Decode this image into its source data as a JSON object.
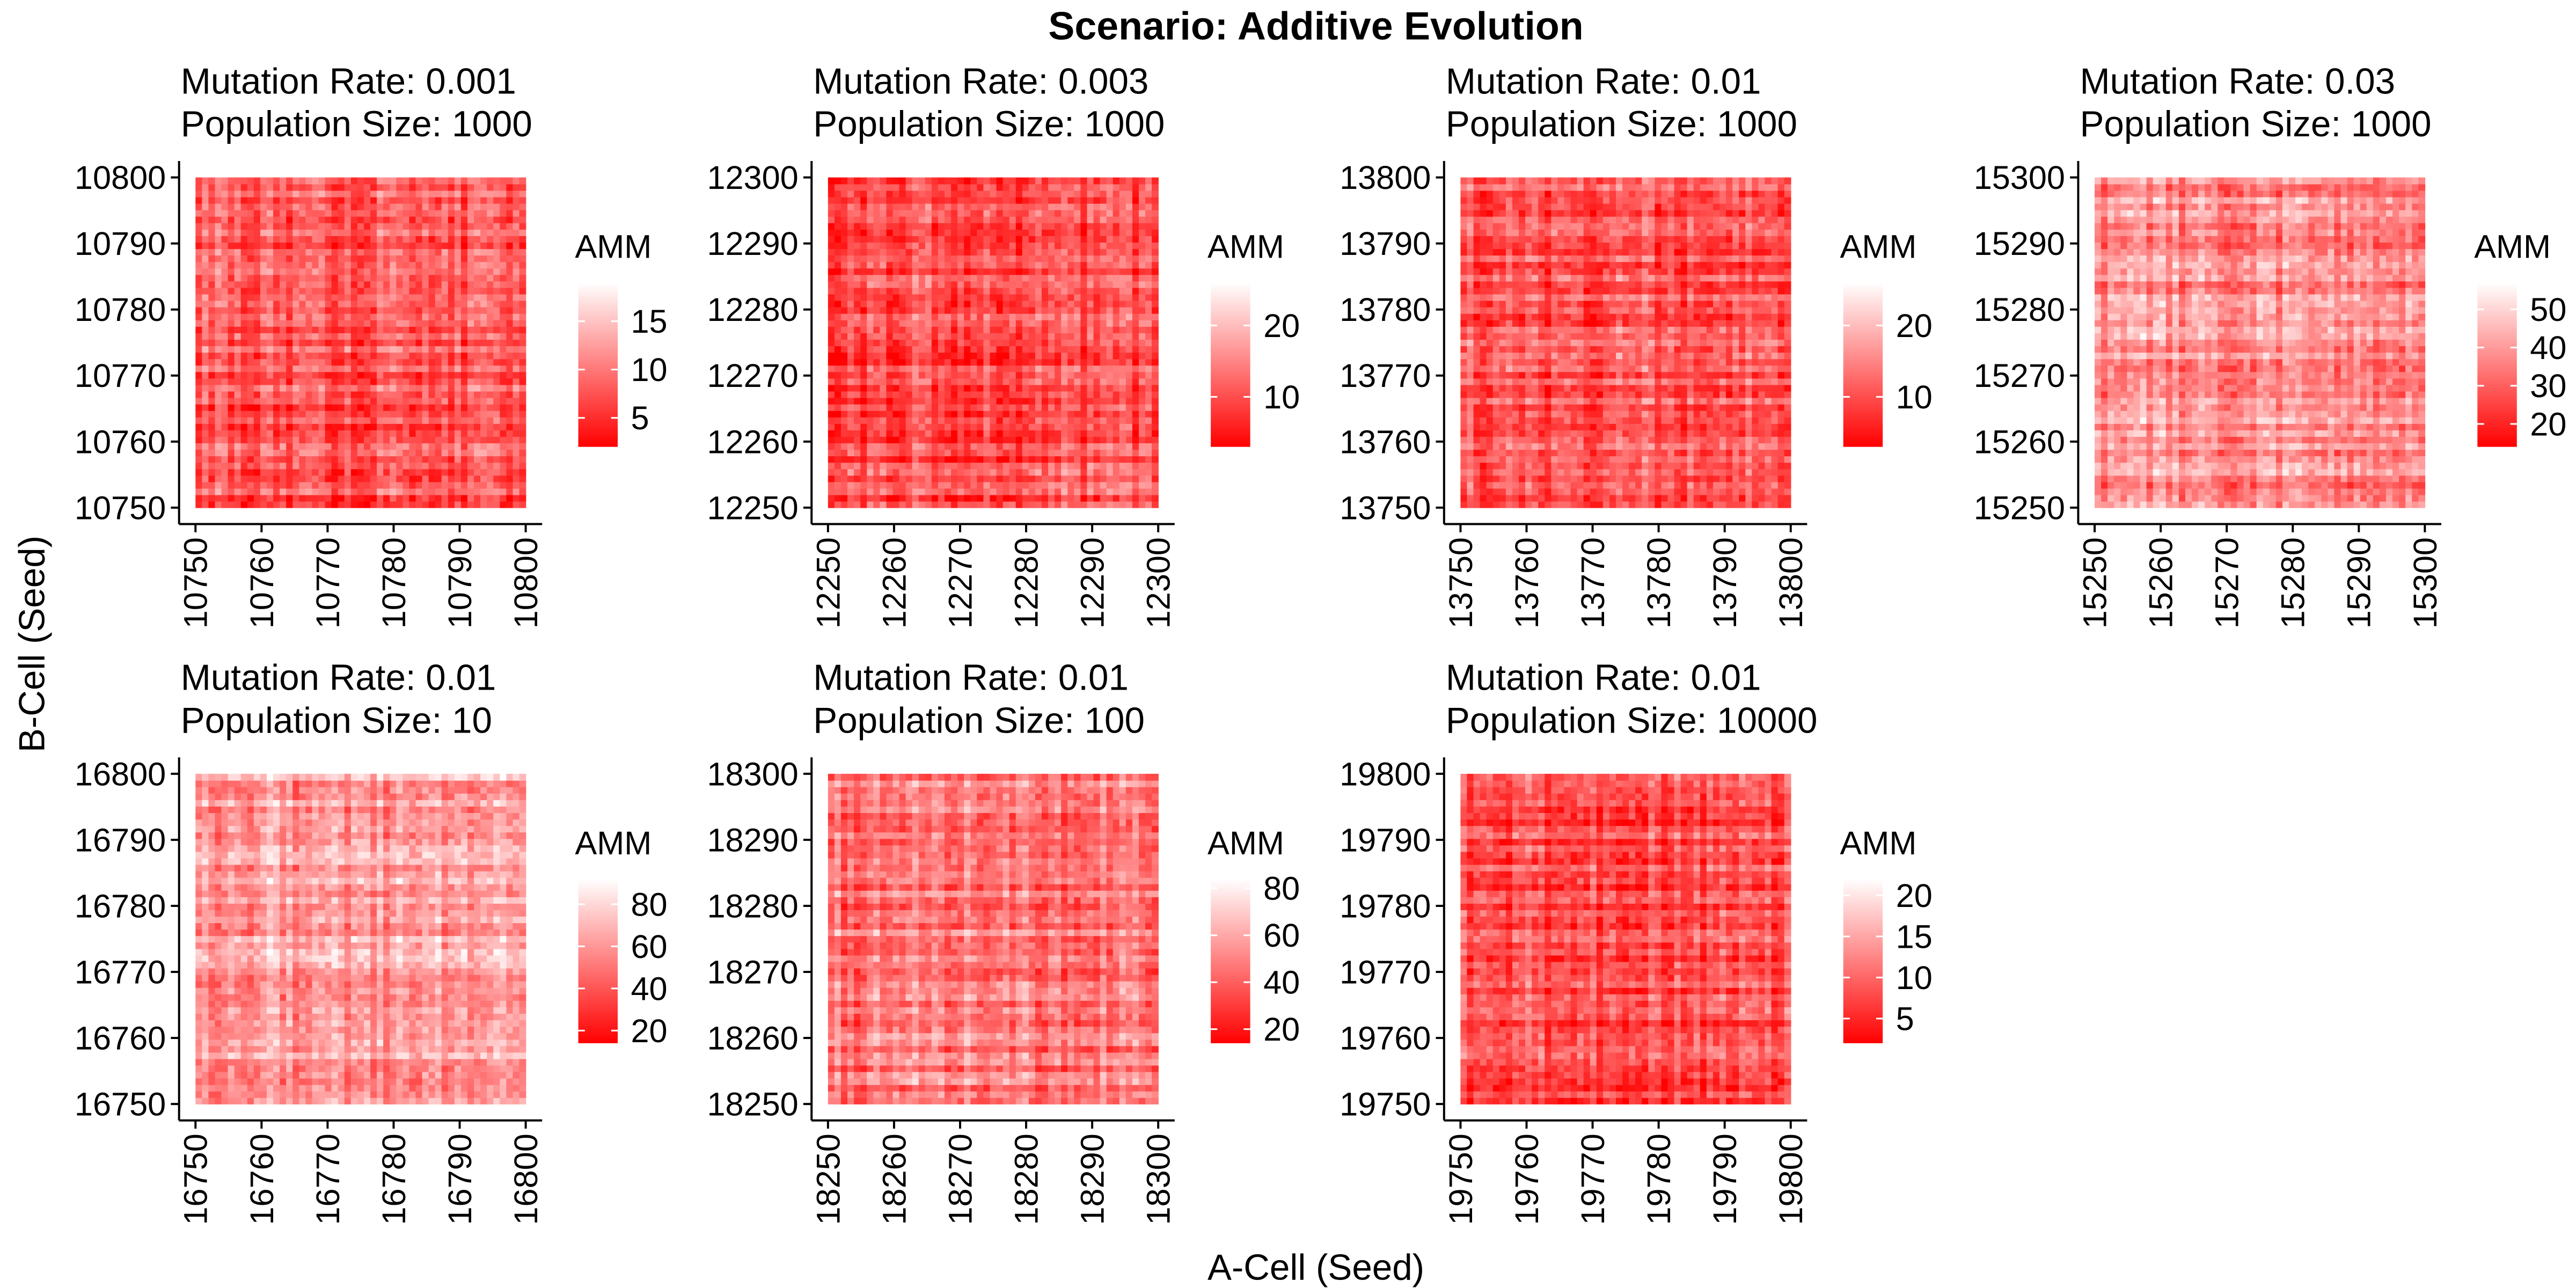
{
  "chart_data": {
    "type": "heatmap",
    "title": "Scenario: Additive Evolution",
    "xlabel": "A-Cell (Seed)",
    "ylabel": "B-Cell (Seed)",
    "legend_title": "AMM",
    "colors": {
      "high": "#ffffff",
      "low": "#ff0000"
    },
    "panels": [
      {
        "title_line1": "Mutation Rate: 0.001",
        "title_line2": "Population Size: 1000",
        "range": [
          10750,
          10800
        ],
        "ticks": [
          10750,
          10760,
          10770,
          10780,
          10790,
          10800
        ],
        "legend_ticks": [
          5,
          10,
          15
        ],
        "value_range": [
          2,
          19
        ]
      },
      {
        "title_line1": "Mutation Rate: 0.003",
        "title_line2": "Population Size: 1000",
        "range": [
          12250,
          12300
        ],
        "ticks": [
          12250,
          12260,
          12270,
          12280,
          12290,
          12300
        ],
        "legend_ticks": [
          10,
          20
        ],
        "value_range": [
          3,
          26
        ]
      },
      {
        "title_line1": "Mutation Rate: 0.01",
        "title_line2": "Population Size: 1000",
        "range": [
          13750,
          13800
        ],
        "ticks": [
          13750,
          13760,
          13770,
          13780,
          13790,
          13800
        ],
        "legend_ticks": [
          10,
          20
        ],
        "value_range": [
          3,
          26
        ]
      },
      {
        "title_line1": "Mutation Rate: 0.03",
        "title_line2": "Population Size: 1000",
        "range": [
          15250,
          15300
        ],
        "ticks": [
          15250,
          15260,
          15270,
          15280,
          15290,
          15300
        ],
        "legend_ticks": [
          20,
          30,
          40,
          50
        ],
        "value_range": [
          14,
          57
        ]
      },
      {
        "title_line1": "Mutation Rate: 0.01",
        "title_line2": "Population Size: 10",
        "range": [
          16750,
          16800
        ],
        "ticks": [
          16750,
          16760,
          16770,
          16780,
          16790,
          16800
        ],
        "legend_ticks": [
          20,
          40,
          60,
          80
        ],
        "value_range": [
          14,
          92
        ]
      },
      {
        "title_line1": "Mutation Rate: 0.01",
        "title_line2": "Population Size: 100",
        "range": [
          18250,
          18300
        ],
        "ticks": [
          18250,
          18260,
          18270,
          18280,
          18290,
          18300
        ],
        "legend_ticks": [
          20,
          40,
          60,
          80
        ],
        "value_range": [
          14,
          84
        ]
      },
      {
        "title_line1": "Mutation Rate: 0.01",
        "title_line2": "Population Size: 10000",
        "range": [
          19750,
          19800
        ],
        "ticks": [
          19750,
          19760,
          19770,
          19780,
          19790,
          19800
        ],
        "legend_ticks": [
          5,
          10,
          15,
          20
        ],
        "value_range": [
          2,
          22
        ]
      }
    ]
  }
}
